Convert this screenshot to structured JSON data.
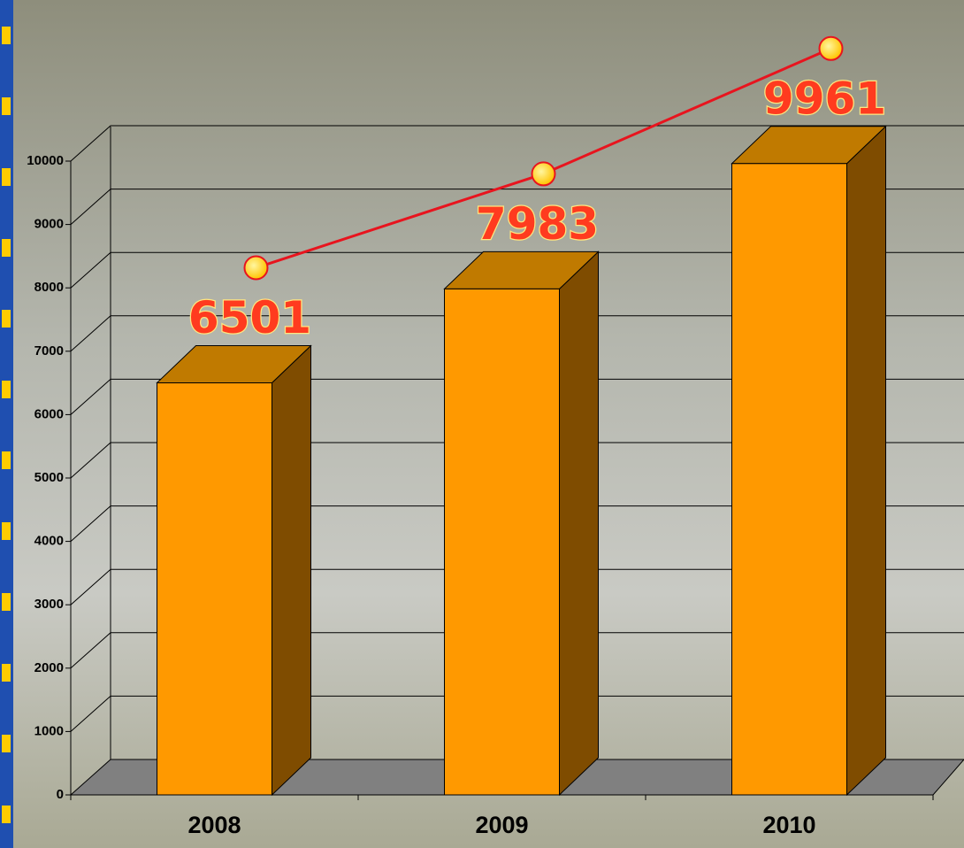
{
  "chart_data": {
    "type": "bar3d",
    "categories": [
      "2008",
      "2009",
      "2010"
    ],
    "values": [
      6501,
      7983,
      9961
    ],
    "color": "#ff9900",
    "line_color": "#e8141e",
    "ylim": [
      0,
      10000
    ],
    "yticks": [
      0,
      1000,
      2000,
      3000,
      4000,
      5000,
      6000,
      7000,
      8000,
      9000,
      10000
    ],
    "grid": true
  }
}
